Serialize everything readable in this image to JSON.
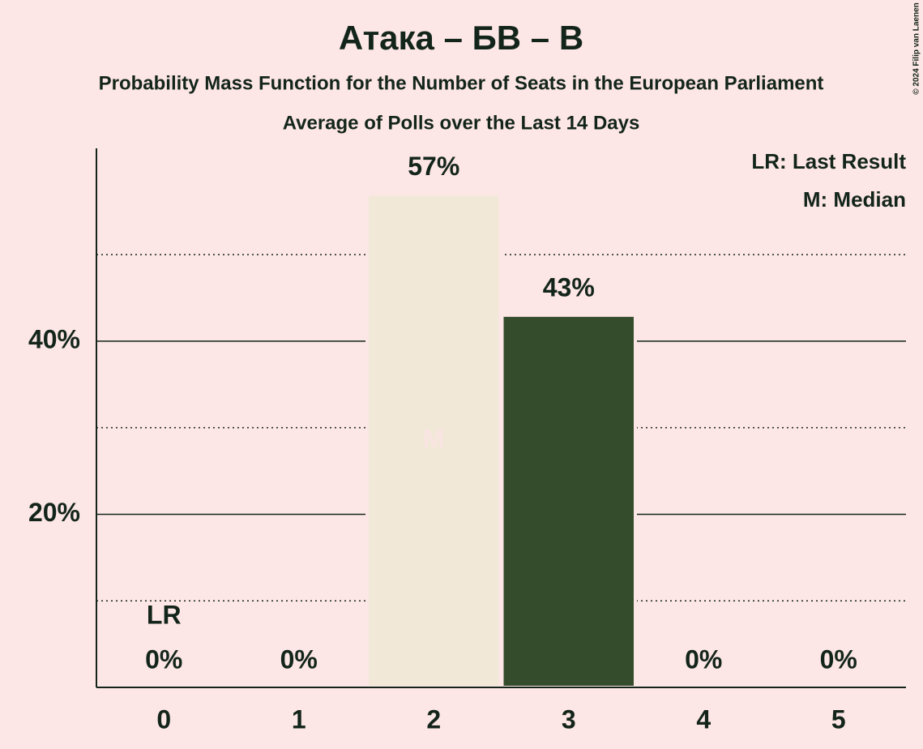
{
  "chart_data": {
    "type": "bar",
    "title": "Атака – БВ – В",
    "subtitles": [
      "Probability Mass Function for the Number of Seats in the European Parliament",
      "Average of Polls over the Last 14 Days"
    ],
    "categories": [
      "0",
      "1",
      "2",
      "3",
      "4",
      "5"
    ],
    "values": [
      0,
      0,
      57,
      43,
      0,
      0
    ],
    "value_labels": [
      "0%",
      "0%",
      "57%",
      "43%",
      "0%",
      "0%"
    ],
    "colors": [
      "#354c2c",
      "#354c2c",
      "#f1e8d8",
      "#354c2c",
      "#354c2c",
      "#354c2c"
    ],
    "ylim": [
      0,
      62
    ],
    "yticks": [
      {
        "value": 20,
        "label": "20%"
      },
      {
        "value": 40,
        "label": "40%"
      }
    ],
    "minor_yticks": [
      10,
      30,
      50
    ],
    "grid": true,
    "annotations": [
      {
        "x": "0",
        "label": "LR"
      },
      {
        "x": "2",
        "label": "M"
      }
    ],
    "legend": [
      "LR: Last Result",
      "M: Median"
    ],
    "credit": "© 2024 Filip van Laenen"
  }
}
